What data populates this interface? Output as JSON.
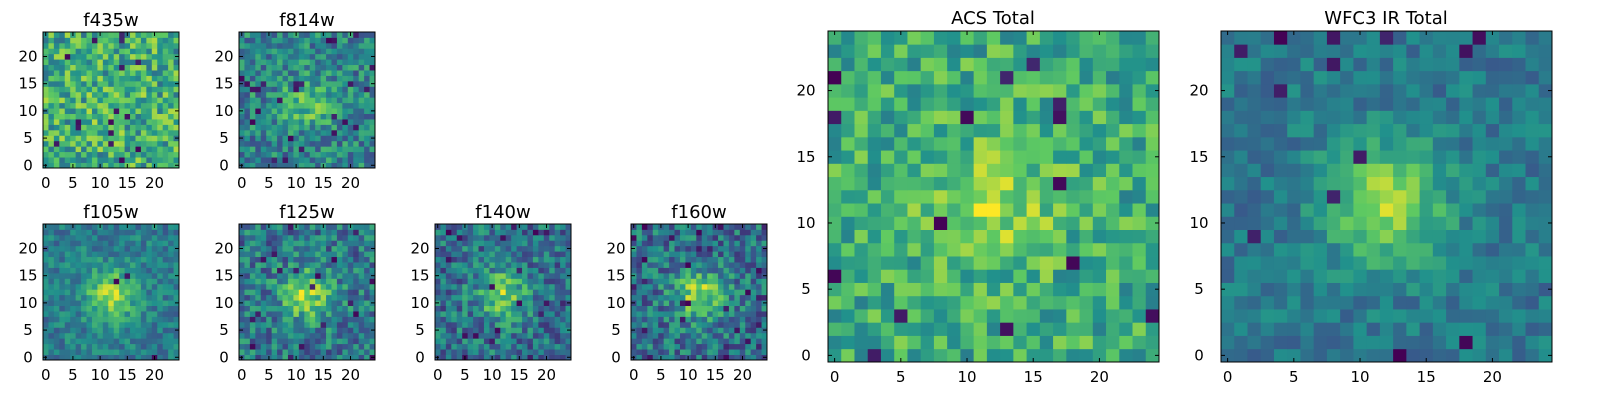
{
  "figure": {
    "colormap": "viridis",
    "colormap_stops": [
      "#440154",
      "#3b528b",
      "#21918c",
      "#5ec962",
      "#fde725"
    ]
  },
  "chart_data": [
    {
      "type": "heatmap",
      "title": "f435w",
      "shape": [
        25,
        25
      ],
      "origin": "lower",
      "xticks": [
        0,
        5,
        10,
        15,
        20
      ],
      "yticks": [
        0,
        5,
        10,
        15,
        20
      ],
      "source": {
        "seed": 11,
        "peak": 0.05,
        "noise": 0.26,
        "base": 0.62,
        "dark_prob": 0.03
      }
    },
    {
      "type": "heatmap",
      "title": "f814w",
      "shape": [
        25,
        25
      ],
      "origin": "lower",
      "xticks": [
        0,
        5,
        10,
        15,
        20
      ],
      "yticks": [
        0,
        5,
        10,
        15,
        20
      ],
      "source": {
        "seed": 23,
        "peak": 0.28,
        "noise": 0.22,
        "base": 0.45,
        "dark_prob": 0.03
      }
    },
    {
      "type": "heatmap",
      "title": "f105w",
      "shape": [
        25,
        25
      ],
      "origin": "lower",
      "xticks": [
        0,
        5,
        10,
        15,
        20
      ],
      "yticks": [
        0,
        5,
        10,
        15,
        20
      ],
      "source": {
        "seed": 37,
        "peak": 0.45,
        "noise": 0.15,
        "base": 0.42,
        "dark_prob": 0.01
      }
    },
    {
      "type": "heatmap",
      "title": "f125w",
      "shape": [
        25,
        25
      ],
      "origin": "lower",
      "xticks": [
        0,
        5,
        10,
        15,
        20
      ],
      "yticks": [
        0,
        5,
        10,
        15,
        20
      ],
      "source": {
        "seed": 41,
        "peak": 0.45,
        "noise": 0.22,
        "base": 0.4,
        "dark_prob": 0.04
      }
    },
    {
      "type": "heatmap",
      "title": "f140w",
      "shape": [
        25,
        25
      ],
      "origin": "lower",
      "xticks": [
        0,
        5,
        10,
        15,
        20
      ],
      "yticks": [
        0,
        5,
        10,
        15,
        20
      ],
      "source": {
        "seed": 53,
        "peak": 0.4,
        "noise": 0.22,
        "base": 0.38,
        "dark_prob": 0.04
      }
    },
    {
      "type": "heatmap",
      "title": "f160w",
      "shape": [
        25,
        25
      ],
      "origin": "lower",
      "xticks": [
        0,
        5,
        10,
        15,
        20
      ],
      "yticks": [
        0,
        5,
        10,
        15,
        20
      ],
      "source": {
        "seed": 67,
        "peak": 0.45,
        "noise": 0.22,
        "base": 0.38,
        "dark_prob": 0.04
      }
    },
    {
      "type": "heatmap",
      "title": "ACS Total",
      "shape": [
        25,
        25
      ],
      "origin": "lower",
      "xticks": [
        0,
        5,
        10,
        15,
        20
      ],
      "yticks": [
        0,
        5,
        10,
        15,
        20
      ],
      "source": {
        "seed": 79,
        "peak": 0.25,
        "noise": 0.2,
        "base": 0.62,
        "dark_prob": 0.03
      }
    },
    {
      "type": "heatmap",
      "title": "WFC3 IR Total",
      "shape": [
        25,
        25
      ],
      "origin": "lower",
      "xticks": [
        0,
        5,
        10,
        15,
        20
      ],
      "yticks": [
        0,
        5,
        10,
        15,
        20
      ],
      "source": {
        "seed": 97,
        "peak": 0.45,
        "noise": 0.12,
        "base": 0.4,
        "dark_prob": 0.03
      }
    }
  ]
}
